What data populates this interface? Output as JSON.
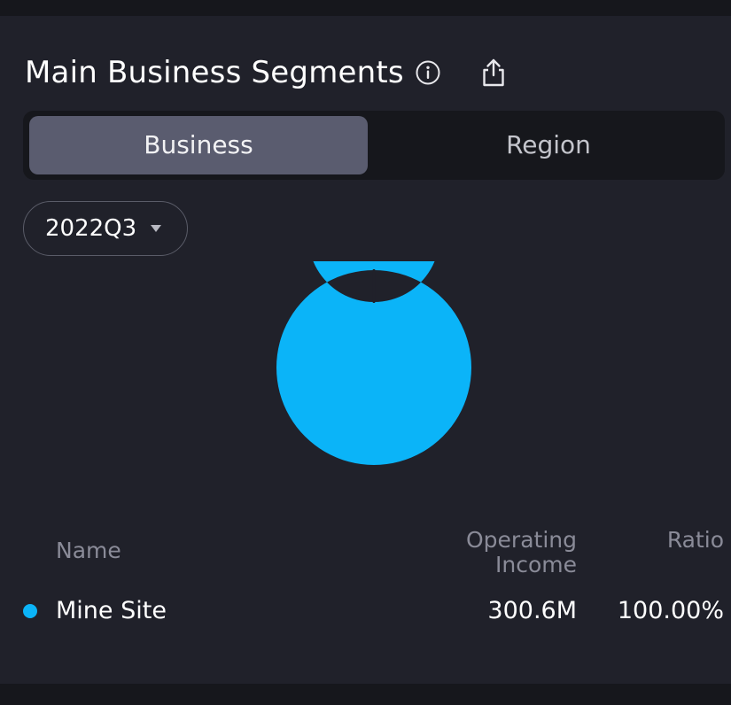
{
  "header": {
    "title": "Main Business Segments",
    "info_icon": "info-circle-icon",
    "share_icon": "share-export-icon"
  },
  "tabs": [
    {
      "label": "Business",
      "active": true
    },
    {
      "label": "Region",
      "active": false
    }
  ],
  "period_selector": {
    "value": "2022Q3",
    "icon": "caret-down-icon"
  },
  "colors": {
    "background": "#20212a",
    "accent": "#0bb4f8",
    "tab_active": "#5a5c6f"
  },
  "table": {
    "columns": {
      "name": "Name",
      "income": "Operating Income",
      "ratio": "Ratio"
    },
    "rows": [
      {
        "name": "Mine Site",
        "income": "300.6M",
        "ratio": "100.00%",
        "color": "#0bb4f8"
      }
    ]
  },
  "chart_data": {
    "type": "pie",
    "style": "donut",
    "title": "",
    "categories": [
      "Mine Site"
    ],
    "values": [
      300.6
    ],
    "ratios": [
      100.0
    ],
    "colors": [
      "#0bb4f8"
    ]
  }
}
